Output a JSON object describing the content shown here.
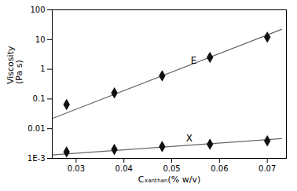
{
  "chart_data": {
    "type": "scatter",
    "xlabel": "Cₓₐₙₜₕₐₙ(% w/v)",
    "ylabel": "Viscosity\n(Pa s)",
    "log": "y",
    "grid": false,
    "xlim": [
      0.025,
      0.074
    ],
    "ylim": [
      0.001,
      100
    ],
    "xticks": [
      0.03,
      0.04,
      0.05,
      0.06,
      0.07
    ],
    "yticks": [
      {
        "value": 0.001,
        "label": "1E-3"
      },
      0.01,
      0.1,
      1,
      10,
      100
    ],
    "series": [
      {
        "type": "line",
        "color": "#666666",
        "x": [
          0.025,
          0.073
        ],
        "values": [
          0.022,
          22.0
        ]
      },
      {
        "type": "line",
        "color": "#666666",
        "x": [
          0.025,
          0.073
        ],
        "values": [
          0.0013,
          0.0046
        ]
      },
      {
        "type": "scatter",
        "color": "#111111",
        "marker": "diamond",
        "x": [
          0.028,
          0.038,
          0.048,
          0.058,
          0.07
        ],
        "values": [
          0.065,
          0.16,
          0.6,
          2.5,
          12.0
        ]
      },
      {
        "type": "scatter",
        "color": "#111111",
        "marker": "diamond",
        "x": [
          0.028,
          0.038,
          0.048,
          0.058,
          0.07
        ],
        "values": [
          0.00165,
          0.002,
          0.0025,
          0.003,
          0.0039
        ]
      }
    ],
    "annotations": [
      {
        "text": "E",
        "x": 0.054,
        "y": 2.0
      },
      {
        "text": "X",
        "x": 0.053,
        "y": 0.0048
      }
    ]
  }
}
